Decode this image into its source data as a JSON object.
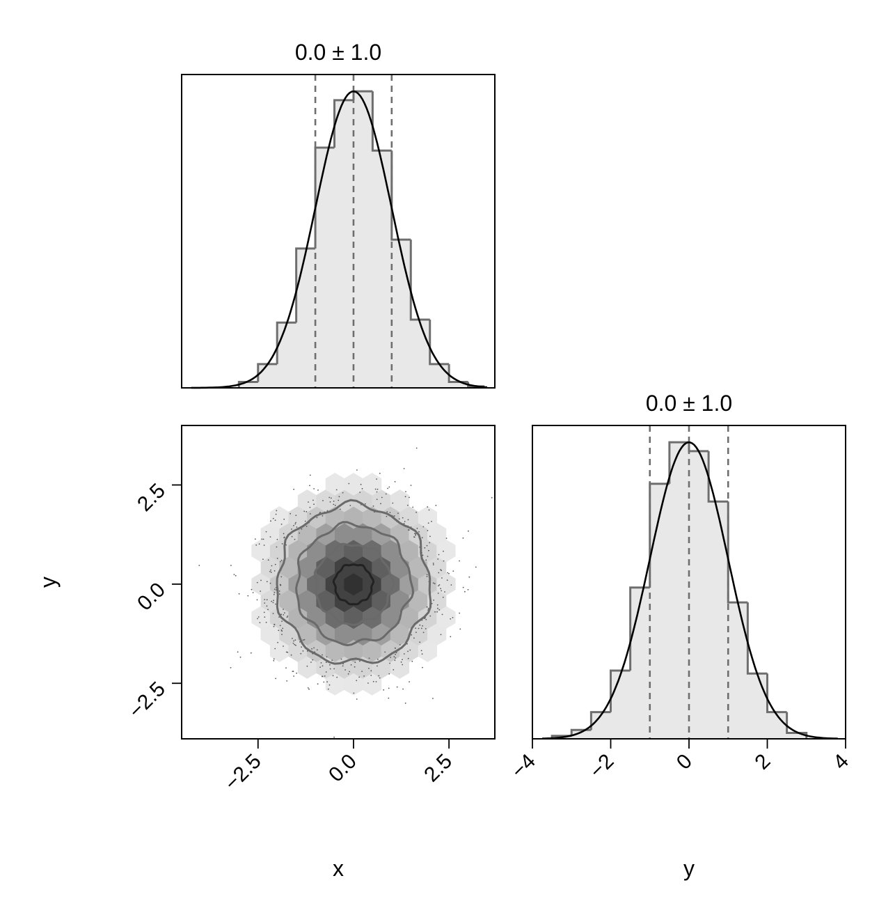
{
  "chart_data": [
    {
      "type": "histogram",
      "panel": "x-marginal",
      "title": "0.0 ± 1.0",
      "xlim": [
        -4.5,
        3.7
      ],
      "bin_edges": [
        -3.0,
        -2.5,
        -2.0,
        -1.5,
        -1.0,
        -0.5,
        0.0,
        0.5,
        1.0,
        1.5,
        2.0,
        2.5,
        3.0,
        3.4
      ],
      "bin_heights": [
        0.02,
        0.08,
        0.22,
        0.47,
        0.81,
        0.97,
        1.0,
        0.8,
        0.5,
        0.23,
        0.08,
        0.02,
        0.005
      ],
      "quantiles": [
        -1.0,
        0.0,
        1.0
      ],
      "kde_peak": 1.0
    },
    {
      "type": "heatmap",
      "panel": "xy-joint",
      "xlim": [
        -4.5,
        3.7
      ],
      "ylim": [
        -3.9,
        4.0
      ],
      "xticks": [
        -2.5,
        0.0,
        2.5
      ],
      "yticks": [
        -2.5,
        0.0,
        2.5
      ],
      "xtick_labels": [
        "−2.5",
        "0.0",
        "2.5"
      ],
      "ytick_labels": [
        "−2.5",
        "0.0",
        "2.5"
      ],
      "xlabel": "x",
      "ylabel": "y",
      "contour_levels_sigma": [
        0.5,
        1.0,
        1.5,
        2.0
      ]
    },
    {
      "type": "histogram",
      "panel": "y-marginal",
      "title": "0.0 ± 1.0",
      "xlim": [
        -4,
        4
      ],
      "xticks": [
        -4,
        -2,
        0,
        2,
        4
      ],
      "xtick_labels": [
        "−4",
        "−2",
        "0",
        "2",
        "4"
      ],
      "xlabel": "y",
      "bin_edges": [
        -3.5,
        -3.0,
        -2.5,
        -2.0,
        -1.5,
        -1.0,
        -0.5,
        0.0,
        0.5,
        1.0,
        1.5,
        2.0,
        2.5,
        3.0
      ],
      "bin_heights": [
        0.01,
        0.03,
        0.09,
        0.23,
        0.51,
        0.86,
        1.0,
        0.97,
        0.8,
        0.46,
        0.22,
        0.09,
        0.02
      ],
      "quantiles": [
        -1.0,
        0.0,
        1.0
      ],
      "kde_peak": 1.0
    }
  ]
}
